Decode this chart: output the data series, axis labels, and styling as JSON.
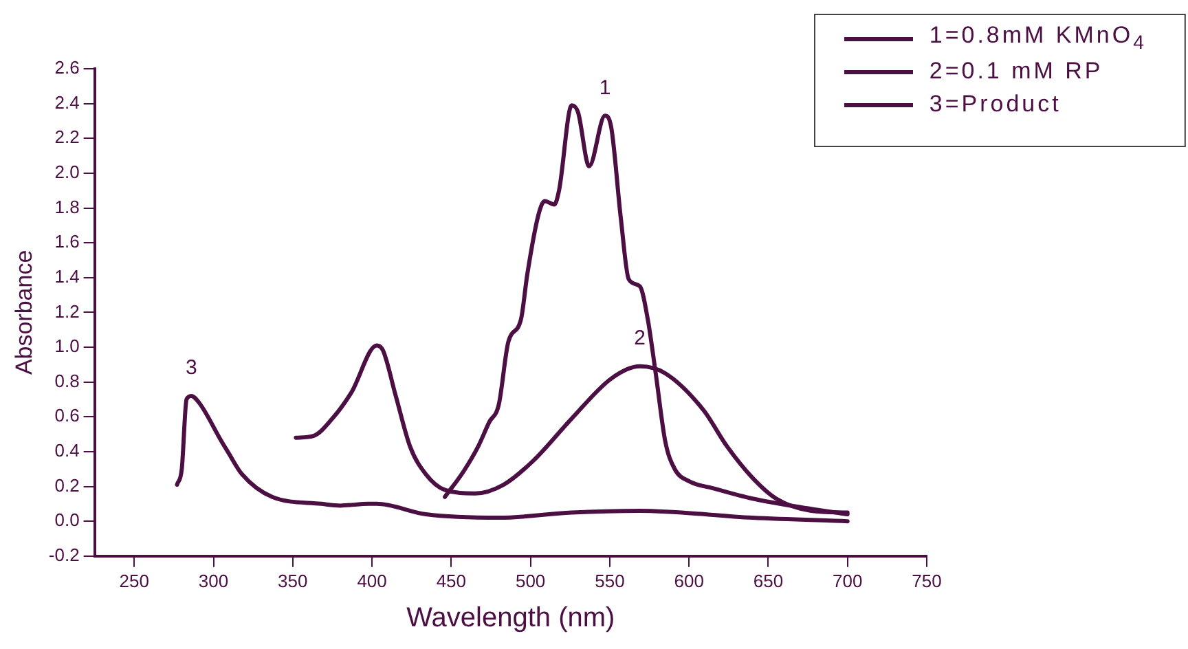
{
  "chart_data": {
    "type": "line",
    "xlabel": "Wavelength (nm)",
    "ylabel": "Absorbance",
    "xlim": [
      225,
      750
    ],
    "xticks": [
      250,
      300,
      350,
      400,
      450,
      500,
      550,
      600,
      650,
      700,
      750
    ],
    "ylim": [
      -0.2,
      2.6
    ],
    "yticks": [
      {
        "value": -0.2,
        "label": "-0.2"
      },
      {
        "value": 0,
        "label": "0.0"
      },
      {
        "value": 0.2,
        "label": "0.2"
      },
      {
        "value": 0.4,
        "label": "0.4"
      },
      {
        "value": 0.6,
        "label": "0.6"
      },
      {
        "value": 0.8,
        "label": "0.8"
      },
      {
        "value": 1,
        "label": "1.0"
      },
      {
        "value": 1.2,
        "label": "1.2"
      },
      {
        "value": 1.4,
        "label": "1.4"
      },
      {
        "value": 1.6,
        "label": "1.6"
      },
      {
        "value": 1.8,
        "label": "1.8"
      },
      {
        "value": 2,
        "label": "2.0"
      },
      {
        "value": 2.2,
        "label": "2.2"
      },
      {
        "value": 2.4,
        "label": "2.4"
      },
      {
        "value": 2.6,
        "label": "2.6"
      }
    ],
    "grid": false,
    "legend": "top right",
    "marker": "none",
    "line_style": "solid",
    "series": [
      {
        "name": "1=0.8mM KMnO$_{4}$",
        "color": "#4b0f43",
        "x": [
          446,
          458,
          467,
          474,
          480,
          486,
          494,
          498,
          505,
          509,
          515,
          518,
          526,
          530,
          537,
          547,
          551,
          557,
          562,
          569,
          574,
          579,
          585,
          591,
          600,
          615,
          640,
          671,
          700
        ],
        "values": [
          0.14,
          0.29,
          0.43,
          0.57,
          0.67,
          1.03,
          1.16,
          1.42,
          1.76,
          1.84,
          1.82,
          1.9,
          2.39,
          2.35,
          2.04,
          2.33,
          2.26,
          1.74,
          1.39,
          1.35,
          1.16,
          0.85,
          0.46,
          0.3,
          0.23,
          0.19,
          0.13,
          0.08,
          0.04
        ]
      },
      {
        "name": "2=0.1 mM RP",
        "color": "#4b0f43",
        "x": [
          352,
          363,
          375,
          387,
          403,
          407,
          415,
          424,
          434,
          446,
          465,
          483,
          502,
          526,
          551,
          569,
          585,
          609,
          624,
          640,
          655,
          677,
          700
        ],
        "values": [
          0.48,
          0.49,
          0.59,
          0.74,
          1.01,
          0.98,
          0.72,
          0.43,
          0.27,
          0.18,
          0.16,
          0.21,
          0.35,
          0.59,
          0.82,
          0.89,
          0.85,
          0.64,
          0.43,
          0.25,
          0.13,
          0.06,
          0.05
        ]
      },
      {
        "name": "3=Product",
        "color": "#4b0f43",
        "x": [
          277,
          280,
          283,
          286,
          291,
          305,
          309,
          318,
          337,
          368,
          380,
          398,
          403,
          434,
          480,
          526,
          569,
          640,
          700
        ],
        "values": [
          0.21,
          0.3,
          0.7,
          0.72,
          0.68,
          0.46,
          0.4,
          0.27,
          0.14,
          0.1,
          0.09,
          0.1,
          0.1,
          0.04,
          0.02,
          0.05,
          0.06,
          0.02,
          0
        ]
      }
    ],
    "annotations": [
      {
        "text": "1",
        "x": 547,
        "y": 2.33
      },
      {
        "text": "2",
        "x": 569,
        "y": 0.89
      },
      {
        "text": "3",
        "x": 286,
        "y": 0.72
      }
    ]
  }
}
